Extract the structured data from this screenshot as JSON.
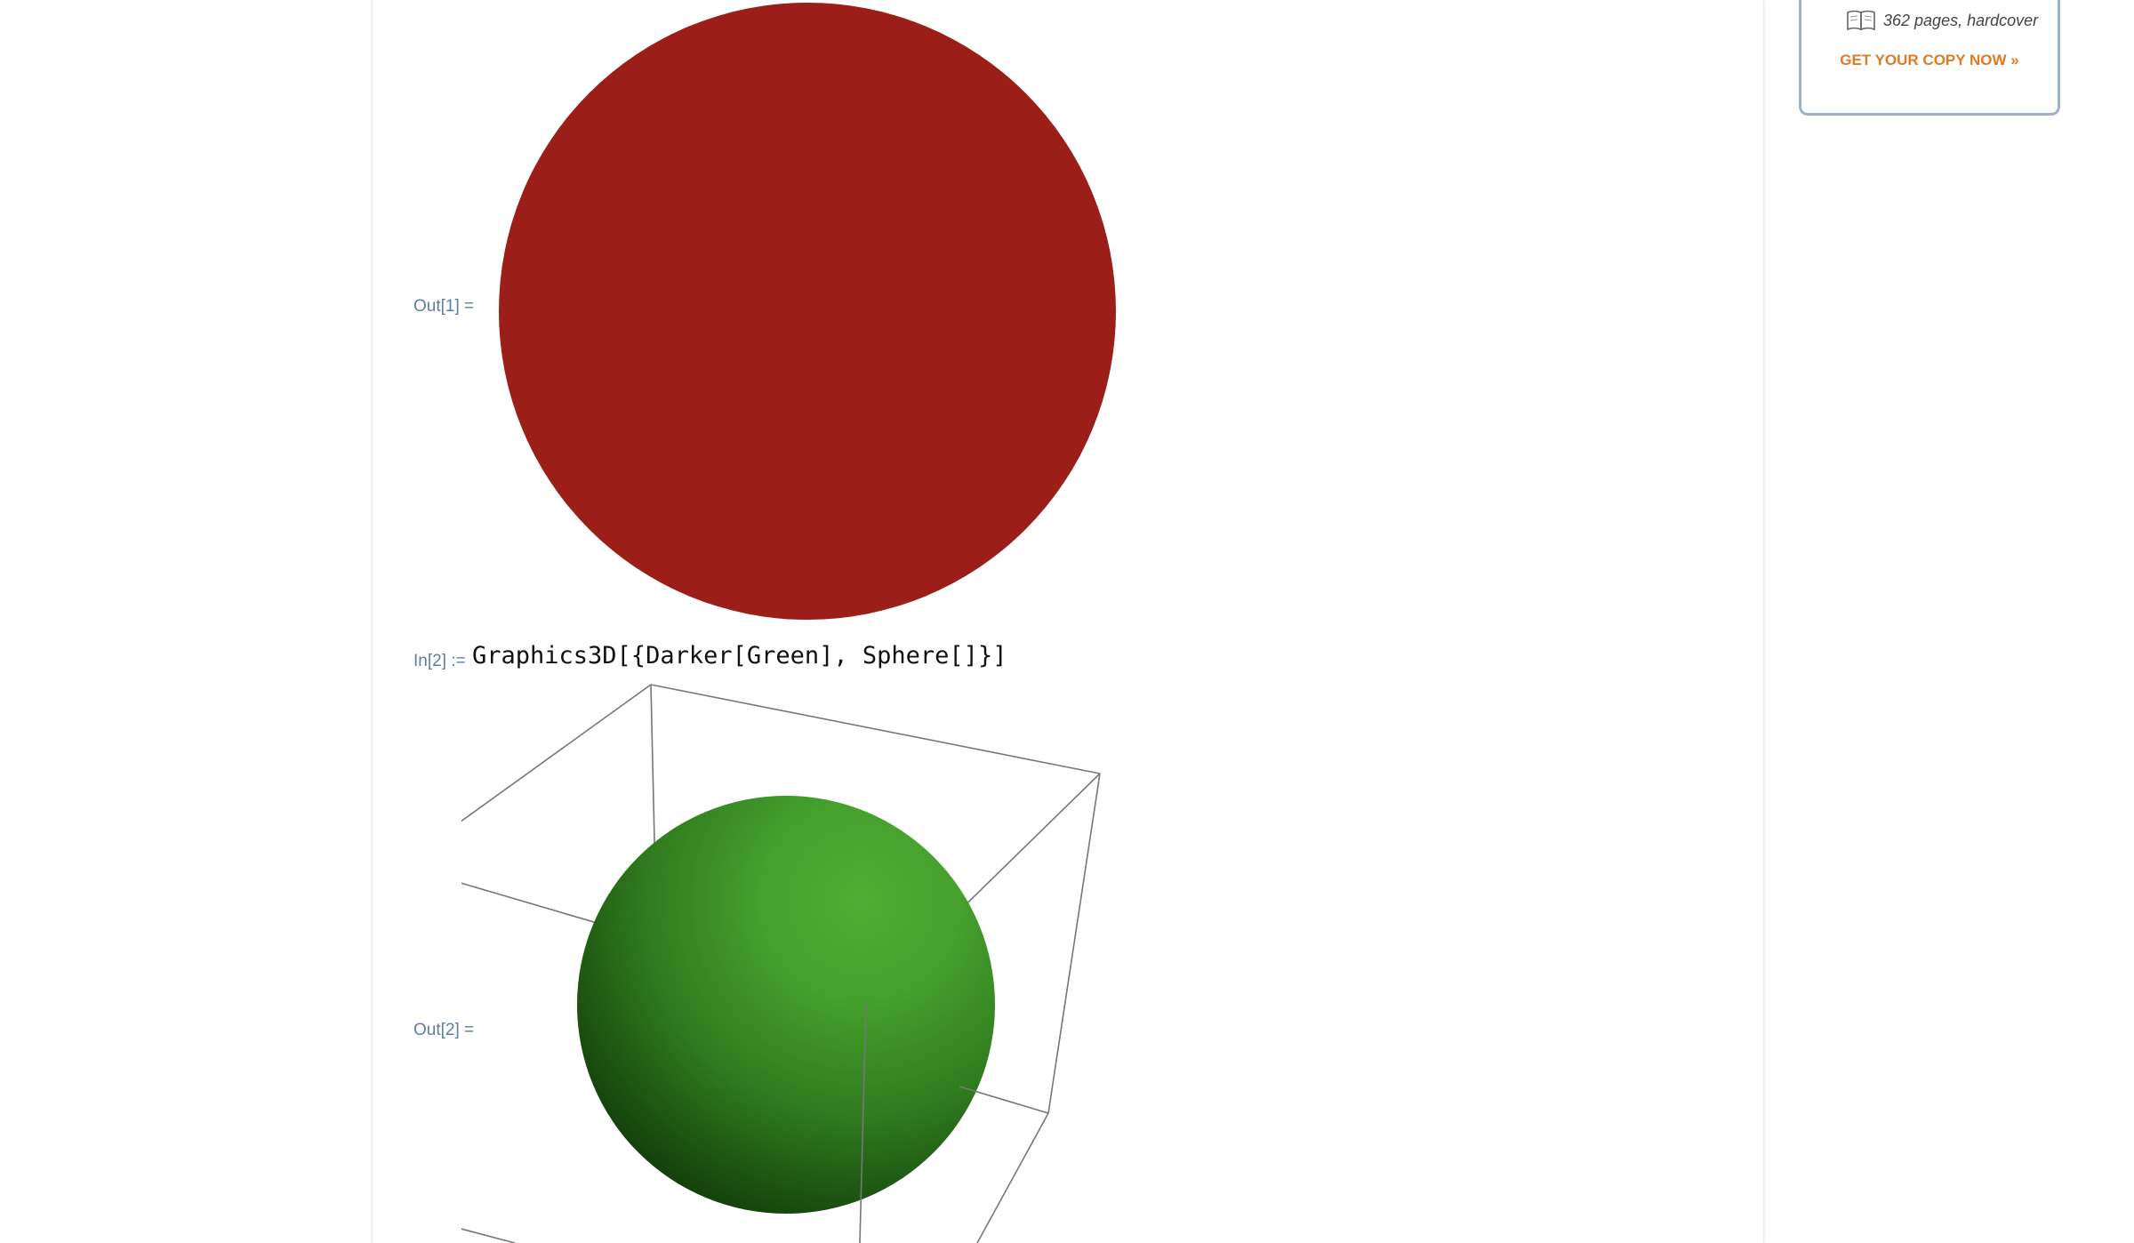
{
  "notebook": {
    "cells": [
      {
        "label": "Out[1] ="
      },
      {
        "label": "In[2] :=",
        "code": "Graphics3D[{Darker[Green], Sphere[]}]"
      },
      {
        "label": "Out[2] ="
      }
    ]
  },
  "sidebar": {
    "book_meta": "362 pages, hardcover",
    "cta": "GET YOUR COPY NOW »"
  },
  "colors": {
    "disk_fill": "#9b1e18",
    "sphere_light": "#4fae34",
    "sphere_dark": "#0c2a06",
    "label_blue": "#5a7fa7",
    "cta_orange": "#e07b24",
    "card_border": "#9cb2c9"
  },
  "icons": {
    "book_icon": "open-book-icon"
  }
}
